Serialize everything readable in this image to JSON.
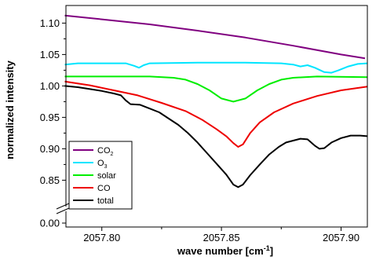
{
  "chart_data": {
    "type": "line",
    "xlabel": "wave number [cm⁻¹]",
    "xlabel_parts": {
      "main": "wave number [cm",
      "sup": "-1",
      "end": "]"
    },
    "ylabel": "normalized intensity",
    "xlim": [
      2057.785,
      2057.911
    ],
    "ylim_upper": [
      0.818,
      1.128
    ],
    "ylim_lower": [
      0.0,
      0.0
    ],
    "y_axis_break": true,
    "x_ticks": [
      "2057.80",
      "2057.85",
      "2057.90"
    ],
    "x_tick_values": [
      2057.8,
      2057.85,
      2057.9
    ],
    "y_ticks": [
      "0.85",
      "0.90",
      "0.95",
      "1.00",
      "1.05",
      "1.10"
    ],
    "y_tick_values": [
      0.85,
      0.9,
      0.95,
      1.0,
      1.05,
      1.1
    ],
    "y_tick_zero": "0.00",
    "legend_position": "bottom-left",
    "grid": false,
    "series": [
      {
        "name": "CO2",
        "label_main": "CO",
        "label_sub": "2",
        "color": "#800080",
        "points": [
          [
            2057.7845,
            1.112
          ],
          [
            2057.8,
            1.106
          ],
          [
            2057.82,
            1.098
          ],
          [
            2057.84,
            1.088
          ],
          [
            2057.86,
            1.077
          ],
          [
            2057.88,
            1.064
          ],
          [
            2057.9,
            1.05
          ],
          [
            2057.91,
            1.044
          ]
        ]
      },
      {
        "name": "O3",
        "label_main": "O",
        "label_sub": "3",
        "color": "#00e5ff",
        "points": [
          [
            2057.7845,
            1.034
          ],
          [
            2057.79,
            1.036
          ],
          [
            2057.81,
            1.036
          ],
          [
            2057.8135,
            1.032
          ],
          [
            2057.8155,
            1.029
          ],
          [
            2057.8175,
            1.033
          ],
          [
            2057.82,
            1.036
          ],
          [
            2057.84,
            1.037
          ],
          [
            2057.86,
            1.037
          ],
          [
            2057.875,
            1.036
          ],
          [
            2057.88,
            1.034
          ],
          [
            2057.883,
            1.031
          ],
          [
            2057.886,
            1.033
          ],
          [
            2057.889,
            1.029
          ],
          [
            2057.893,
            1.022
          ],
          [
            2057.896,
            1.021
          ],
          [
            2057.899,
            1.025
          ],
          [
            2057.903,
            1.031
          ],
          [
            2057.907,
            1.035
          ],
          [
            2057.911,
            1.036
          ]
        ]
      },
      {
        "name": "solar",
        "label_main": "solar",
        "label_sub": "",
        "color": "#00ee00",
        "points": [
          [
            2057.7845,
            1.015
          ],
          [
            2057.82,
            1.015
          ],
          [
            2057.83,
            1.013
          ],
          [
            2057.835,
            1.01
          ],
          [
            2057.84,
            1.003
          ],
          [
            2057.845,
            0.993
          ],
          [
            2057.85,
            0.98
          ],
          [
            2057.855,
            0.975
          ],
          [
            2057.86,
            0.98
          ],
          [
            2057.865,
            0.993
          ],
          [
            2057.87,
            1.003
          ],
          [
            2057.875,
            1.01
          ],
          [
            2057.88,
            1.013
          ],
          [
            2057.89,
            1.015
          ],
          [
            2057.911,
            1.014
          ]
        ]
      },
      {
        "name": "CO",
        "label_main": "CO",
        "label_sub": "",
        "color": "#ee0000",
        "points": [
          [
            2057.7845,
            1.007
          ],
          [
            2057.795,
            1.001
          ],
          [
            2057.805,
            0.993
          ],
          [
            2057.815,
            0.985
          ],
          [
            2057.825,
            0.973
          ],
          [
            2057.835,
            0.96
          ],
          [
            2057.842,
            0.946
          ],
          [
            2057.848,
            0.931
          ],
          [
            2057.852,
            0.92
          ],
          [
            2057.855,
            0.909
          ],
          [
            2057.857,
            0.903
          ],
          [
            2057.859,
            0.907
          ],
          [
            2057.862,
            0.925
          ],
          [
            2057.866,
            0.942
          ],
          [
            2057.872,
            0.958
          ],
          [
            2057.88,
            0.972
          ],
          [
            2057.89,
            0.984
          ],
          [
            2057.9,
            0.993
          ],
          [
            2057.911,
            0.999
          ]
        ]
      },
      {
        "name": "total",
        "label_main": "total",
        "label_sub": "",
        "color": "#000000",
        "points": [
          [
            2057.7845,
            1.0
          ],
          [
            2057.79,
            0.998
          ],
          [
            2057.795,
            0.995
          ],
          [
            2057.8,
            0.992
          ],
          [
            2057.805,
            0.988
          ],
          [
            2057.808,
            0.985
          ],
          [
            2057.81,
            0.977
          ],
          [
            2057.812,
            0.971
          ],
          [
            2057.816,
            0.97
          ],
          [
            2057.82,
            0.964
          ],
          [
            2057.824,
            0.958
          ],
          [
            2057.828,
            0.948
          ],
          [
            2057.832,
            0.938
          ],
          [
            2057.836,
            0.925
          ],
          [
            2057.84,
            0.91
          ],
          [
            2057.844,
            0.893
          ],
          [
            2057.848,
            0.876
          ],
          [
            2057.852,
            0.859
          ],
          [
            2057.855,
            0.843
          ],
          [
            2057.857,
            0.839
          ],
          [
            2057.859,
            0.843
          ],
          [
            2057.862,
            0.858
          ],
          [
            2057.866,
            0.875
          ],
          [
            2057.87,
            0.891
          ],
          [
            2057.874,
            0.903
          ],
          [
            2057.877,
            0.91
          ],
          [
            2057.88,
            0.913
          ],
          [
            2057.883,
            0.916
          ],
          [
            2057.886,
            0.915
          ],
          [
            2057.889,
            0.905
          ],
          [
            2057.891,
            0.9
          ],
          [
            2057.893,
            0.901
          ],
          [
            2057.896,
            0.91
          ],
          [
            2057.9,
            0.917
          ],
          [
            2057.904,
            0.921
          ],
          [
            2057.908,
            0.921
          ],
          [
            2057.911,
            0.92
          ]
        ]
      }
    ]
  }
}
